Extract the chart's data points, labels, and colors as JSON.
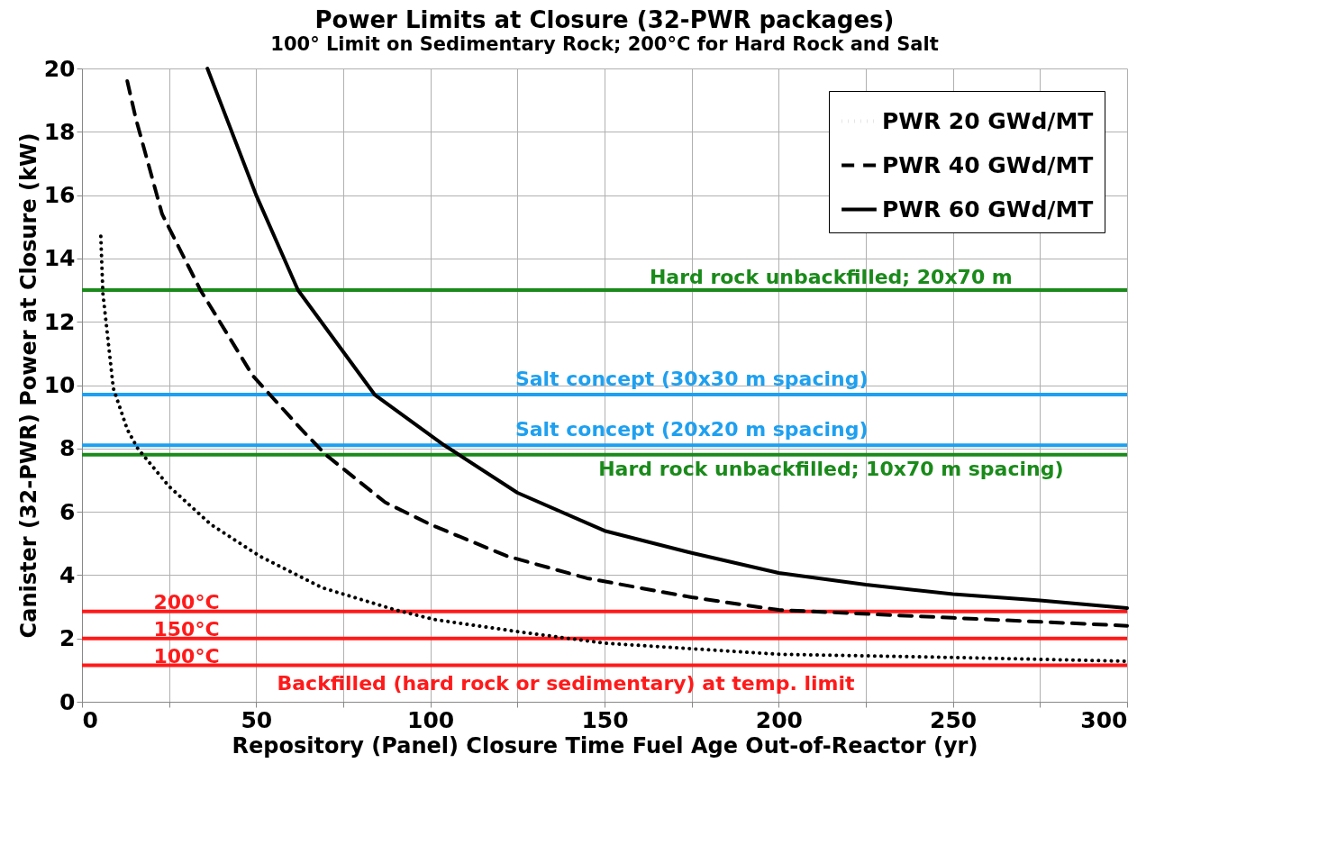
{
  "chart_data": {
    "type": "line",
    "title": "Power Limits at Closure (32-PWR packages)",
    "subtitle": "100° Limit on Sedimentary Rock; 200°C for Hard Rock and Salt",
    "xlabel": "Repository (Panel) Closure Time Fuel Age Out-of-Reactor (yr)",
    "ylabel": "Canister (32-PWR) Power at Closure (kW)",
    "xlim": [
      0,
      300
    ],
    "ylim": [
      0,
      20
    ],
    "xticks": [
      0,
      {
        "value": 25,
        "label": null
      },
      50,
      {
        "value": 75,
        "label": null
      },
      100,
      {
        "value": 125,
        "label": null
      },
      150,
      {
        "value": 175,
        "label": null
      },
      200,
      {
        "value": 225,
        "label": null
      },
      250,
      {
        "value": 275,
        "label": null
      },
      300
    ],
    "yticks": [
      0,
      2,
      4,
      6,
      8,
      10,
      12,
      14,
      16,
      18,
      20
    ],
    "grid": true,
    "legend": "top right",
    "series": [
      {
        "name": "PWR 20 GWd/MT",
        "color": "#000000",
        "line_style": "dotted",
        "x": [
          5.4,
          6,
          8,
          9,
          13,
          16,
          25,
          37,
          51,
          69,
          90,
          101,
          126,
          150,
          200,
          250,
          300
        ],
        "values": [
          14.7,
          12.9,
          10.9,
          9.9,
          8.6,
          8.0,
          6.8,
          5.6,
          4.6,
          3.6,
          2.9,
          2.6,
          2.2,
          1.85,
          1.5,
          1.4,
          1.28
        ]
      },
      {
        "name": "PWR 40 GWd/MT",
        "color": "#000000",
        "line_style": "dashed",
        "x": [
          13,
          15.5,
          23,
          34,
          49,
          63,
          70,
          87,
          100,
          122,
          145,
          175,
          200,
          250,
          300
        ],
        "values": [
          19.6,
          18.4,
          15.4,
          13.0,
          10.3,
          8.6,
          7.8,
          6.3,
          5.6,
          4.6,
          3.9,
          3.3,
          2.9,
          2.65,
          2.4
        ]
      },
      {
        "name": "PWR 60 GWd/MT",
        "color": "#000000",
        "line_style": "solid",
        "x": [
          36,
          50,
          62,
          84,
          104,
          125,
          150,
          175,
          200,
          225,
          250,
          275,
          300
        ],
        "values": [
          20,
          16,
          13,
          9.7,
          8.1,
          6.6,
          5.4,
          4.7,
          4.07,
          3.7,
          3.4,
          3.2,
          2.96
        ]
      }
    ],
    "ref_lines": [
      {
        "axis": "y",
        "value": 13,
        "label": "Hard rock unbackfilled; 20x70 m",
        "color": "#1a8a1a"
      },
      {
        "axis": "y",
        "value": 9.7,
        "label": "Salt concept (30x30 m spacing)",
        "color": "#1ea0f0"
      },
      {
        "axis": "y",
        "value": 8.1,
        "label": "Salt concept (20x20 m spacing)",
        "color": "#1ea0f0"
      },
      {
        "axis": "y",
        "value": 7.8,
        "label": "Hard rock unbackfilled; 10x70 m spacing)",
        "color": "#1a8a1a"
      },
      {
        "axis": "y",
        "value": 2.85,
        "label": "200°C",
        "color": "#ff1a1a"
      },
      {
        "axis": "y",
        "value": 2.0,
        "label": "150°C",
        "color": "#ff1a1a"
      },
      {
        "axis": "y",
        "value": 1.15,
        "label": "100°C",
        "color": "#ff1a1a"
      }
    ],
    "annotations": [
      "Backfilled (hard rock or sedimentary) at temp. limit"
    ]
  }
}
